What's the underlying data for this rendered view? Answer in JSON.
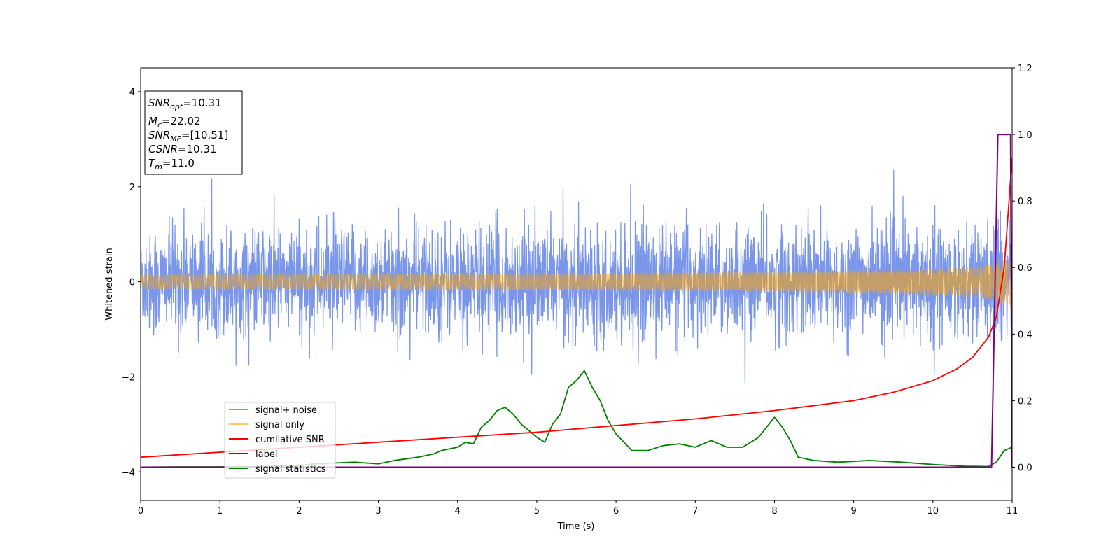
{
  "chart_data": {
    "type": "line",
    "xlabel": "Time (s)",
    "ylabel": "Whitened strain",
    "xlim": [
      0,
      11
    ],
    "ylim_left": [
      -4.6,
      4.5
    ],
    "ylim_right": [
      -0.1,
      1.2
    ],
    "x_ticks": [
      "0",
      "1",
      "2",
      "3",
      "4",
      "5",
      "6",
      "7",
      "8",
      "9",
      "10",
      "11"
    ],
    "y_left_ticks": [
      "4",
      "2",
      "0",
      "−2",
      "−4"
    ],
    "y_right_ticks": [
      "1.2",
      "1.0",
      "0.8",
      "0.6",
      "0.4",
      "0.2",
      "0.0"
    ],
    "grid": false,
    "legend_location": "lower-left",
    "colors": {
      "noise": "#4169e1",
      "signal": "#ffa500",
      "snr": "#ff0000",
      "label": "#800080",
      "stats": "#008000"
    },
    "annotation": {
      "snr_opt": {
        "base": "SNR",
        "sub": "opt",
        "value": "=10.31"
      },
      "mc": {
        "base": "M",
        "sub": "c",
        "value": "=22.02"
      },
      "snr_mf": {
        "base": "SNR",
        "sub": "MF",
        "value": "=[10.51]"
      },
      "csnr": {
        "base": "CSNR",
        "value": "=10.31"
      },
      "tm": {
        "base": "T",
        "sub": "m",
        "value": "=11.0"
      }
    },
    "series": [
      {
        "name": "signal+ noise",
        "axis": "left",
        "color": "#4169e1",
        "description_values": {
          "typical_amplitude": 1.0,
          "peak_max": 2.3,
          "peak_min": -2.2
        }
      },
      {
        "name": "signal only",
        "axis": "left",
        "color": "#ffa500",
        "chirp": {
          "end_time": 11.0,
          "final_amplitude": 0.6
        }
      },
      {
        "name": "cumilative SNR",
        "axis": "right",
        "color": "#ff0000",
        "x": [
          0,
          1,
          2,
          3,
          4,
          5,
          6,
          7,
          8,
          9,
          9.5,
          10,
          10.3,
          10.5,
          10.7,
          10.8,
          10.9,
          11.0
        ],
        "y": [
          0.03,
          0.045,
          0.06,
          0.075,
          0.09,
          0.105,
          0.125,
          0.145,
          0.17,
          0.2,
          0.225,
          0.26,
          0.295,
          0.33,
          0.39,
          0.45,
          0.6,
          0.93
        ]
      },
      {
        "name": "label",
        "axis": "right",
        "color": "#800080",
        "x": [
          0,
          10.74,
          10.82,
          10.98,
          11.0
        ],
        "y": [
          0.0,
          0.0,
          1.0,
          1.0,
          0.0
        ]
      },
      {
        "name": "signal statistics",
        "axis": "right",
        "color": "#008000",
        "x": [
          0,
          0.5,
          1,
          1.5,
          2,
          2.2,
          2.5,
          2.7,
          3,
          3.2,
          3.5,
          3.7,
          3.8,
          4.0,
          4.1,
          4.2,
          4.3,
          4.4,
          4.5,
          4.6,
          4.7,
          4.8,
          4.9,
          5.0,
          5.1,
          5.2,
          5.3,
          5.4,
          5.5,
          5.6,
          5.7,
          5.8,
          5.9,
          6.0,
          6.2,
          6.4,
          6.6,
          6.8,
          7.0,
          7.2,
          7.4,
          7.6,
          7.8,
          7.9,
          8.0,
          8.1,
          8.2,
          8.3,
          8.5,
          8.8,
          9.2,
          9.6,
          10.0,
          10.4,
          10.7,
          10.8,
          10.9,
          11.0
        ],
        "y": [
          0.0,
          0.001,
          0.001,
          0.002,
          0.005,
          0.01,
          0.013,
          0.015,
          0.01,
          0.02,
          0.03,
          0.04,
          0.05,
          0.06,
          0.075,
          0.07,
          0.12,
          0.14,
          0.17,
          0.18,
          0.16,
          0.13,
          0.11,
          0.09,
          0.075,
          0.13,
          0.16,
          0.24,
          0.26,
          0.29,
          0.24,
          0.2,
          0.14,
          0.1,
          0.05,
          0.05,
          0.065,
          0.07,
          0.06,
          0.08,
          0.06,
          0.06,
          0.09,
          0.12,
          0.15,
          0.12,
          0.08,
          0.03,
          0.02,
          0.015,
          0.02,
          0.015,
          0.008,
          0.003,
          0.002,
          0.015,
          0.05,
          0.06
        ]
      }
    ],
    "legend": [
      "signal+ noise",
      "signal only",
      "cumilative SNR",
      "label",
      "signal statistics"
    ]
  }
}
